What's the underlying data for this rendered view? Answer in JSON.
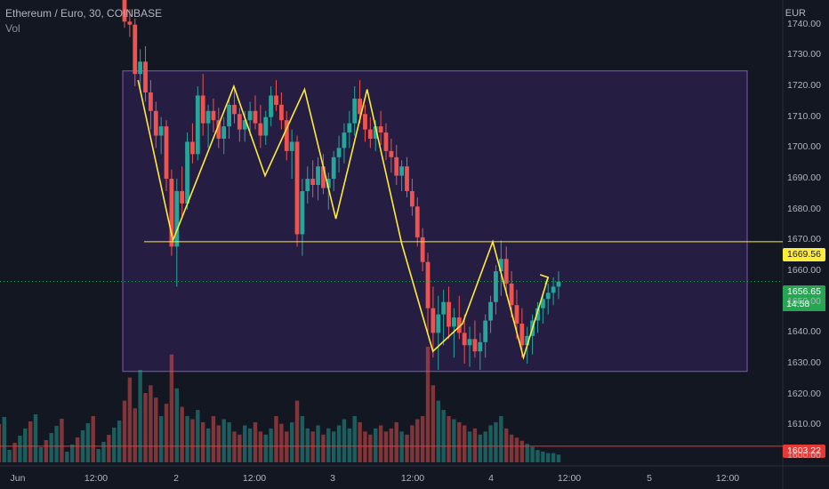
{
  "header": {
    "symbol_line": "Ethereum / Euro, 30, COINBASE",
    "indicator": "Vol",
    "currency": "EUR"
  },
  "price_axis": {
    "ticks": [
      "1740.00",
      "1730.00",
      "1720.00",
      "1710.00",
      "1700.00",
      "1690.00",
      "1680.00",
      "1670.00",
      "1660.00",
      "1650.00",
      "1640.00",
      "1630.00",
      "1620.00",
      "1610.00",
      "1600.00"
    ],
    "tick_values": [
      1740,
      1730,
      1720,
      1710,
      1700,
      1690,
      1680,
      1670,
      1660,
      1650,
      1640,
      1630,
      1620,
      1610,
      1600
    ]
  },
  "time_axis": {
    "labels": [
      "Jun",
      "12:00",
      "2",
      "12:00",
      "3",
      "12:00",
      "4",
      "12:00",
      "5",
      "12:00"
    ]
  },
  "labels": {
    "horizontal_line_price": "1669.56",
    "last_price": "1656.65",
    "countdown": "14:58",
    "low_line_price": "1603.22"
  },
  "colors": {
    "background": "#131722",
    "up": "#26a69a",
    "down": "#ef5350",
    "range_box": "#673ab7",
    "zigzag": "#ffeb3b",
    "hline": "#ffeb3b",
    "low_line": "#e53935"
  },
  "chart_data": {
    "type": "candlestick",
    "ylim": [
      1598,
      1748
    ],
    "range_box": {
      "top": 1725,
      "bottom": 1627.5
    },
    "horizontal_line": 1669.56,
    "last_price": 1656.65,
    "low_line": 1603.22,
    "candles": [
      [
        1752,
        1755,
        1739,
        1741
      ],
      [
        1741,
        1745,
        1736,
        1740
      ],
      [
        1740,
        1742,
        1720,
        1724
      ],
      [
        1724,
        1732,
        1718,
        1728
      ],
      [
        1728,
        1733,
        1715,
        1718
      ],
      [
        1718,
        1722,
        1706,
        1712
      ],
      [
        1712,
        1715,
        1700,
        1704
      ],
      [
        1704,
        1710,
        1698,
        1707
      ],
      [
        1707,
        1709,
        1686,
        1690
      ],
      [
        1690,
        1693,
        1665,
        1668
      ],
      [
        1668,
        1690,
        1655,
        1686
      ],
      [
        1686,
        1694,
        1678,
        1682
      ],
      [
        1682,
        1705,
        1680,
        1702
      ],
      [
        1702,
        1708,
        1695,
        1698
      ],
      [
        1698,
        1720,
        1696,
        1717
      ],
      [
        1717,
        1724,
        1704,
        1708
      ],
      [
        1708,
        1714,
        1700,
        1712
      ],
      [
        1712,
        1716,
        1705,
        1709
      ],
      [
        1709,
        1713,
        1700,
        1703
      ],
      [
        1703,
        1710,
        1698,
        1707
      ],
      [
        1707,
        1716,
        1703,
        1714
      ],
      [
        1714,
        1719,
        1708,
        1711
      ],
      [
        1711,
        1713,
        1702,
        1706
      ],
      [
        1706,
        1712,
        1702,
        1709
      ],
      [
        1709,
        1715,
        1704,
        1712
      ],
      [
        1712,
        1717,
        1706,
        1708
      ],
      [
        1708,
        1714,
        1700,
        1704
      ],
      [
        1704,
        1712,
        1701,
        1710
      ],
      [
        1710,
        1720,
        1707,
        1717
      ],
      [
        1717,
        1722,
        1712,
        1714
      ],
      [
        1714,
        1718,
        1706,
        1709
      ],
      [
        1709,
        1712,
        1696,
        1699
      ],
      [
        1699,
        1706,
        1690,
        1702
      ],
      [
        1702,
        1704,
        1668,
        1672
      ],
      [
        1672,
        1690,
        1665,
        1686
      ],
      [
        1686,
        1694,
        1682,
        1690
      ],
      [
        1690,
        1696,
        1684,
        1688
      ],
      [
        1688,
        1697,
        1683,
        1694
      ],
      [
        1694,
        1698,
        1685,
        1687
      ],
      [
        1687,
        1692,
        1680,
        1690
      ],
      [
        1690,
        1699,
        1686,
        1697
      ],
      [
        1697,
        1704,
        1692,
        1700
      ],
      [
        1700,
        1708,
        1695,
        1705
      ],
      [
        1705,
        1712,
        1700,
        1708
      ],
      [
        1708,
        1720,
        1704,
        1716
      ],
      [
        1716,
        1722,
        1708,
        1711
      ],
      [
        1711,
        1714,
        1702,
        1706
      ],
      [
        1706,
        1710,
        1700,
        1703
      ],
      [
        1703,
        1709,
        1699,
        1707
      ],
      [
        1707,
        1712,
        1701,
        1705
      ],
      [
        1705,
        1708,
        1696,
        1699
      ],
      [
        1699,
        1703,
        1692,
        1697
      ],
      [
        1697,
        1701,
        1688,
        1691
      ],
      [
        1691,
        1696,
        1686,
        1694
      ],
      [
        1694,
        1697,
        1684,
        1686
      ],
      [
        1686,
        1690,
        1678,
        1681
      ],
      [
        1681,
        1684,
        1668,
        1671
      ],
      [
        1671,
        1674,
        1660,
        1663
      ],
      [
        1663,
        1666,
        1640,
        1648
      ],
      [
        1648,
        1655,
        1632,
        1640
      ],
      [
        1640,
        1652,
        1628,
        1646
      ],
      [
        1646,
        1654,
        1636,
        1650
      ],
      [
        1650,
        1655,
        1638,
        1642
      ],
      [
        1642,
        1648,
        1632,
        1645
      ],
      [
        1645,
        1652,
        1638,
        1640
      ],
      [
        1640,
        1646,
        1630,
        1636
      ],
      [
        1636,
        1642,
        1629,
        1638
      ],
      [
        1638,
        1644,
        1632,
        1634
      ],
      [
        1634,
        1640,
        1628,
        1637
      ],
      [
        1637,
        1646,
        1632,
        1644
      ],
      [
        1644,
        1652,
        1640,
        1650
      ],
      [
        1650,
        1662,
        1646,
        1660
      ],
      [
        1660,
        1670,
        1652,
        1664
      ],
      [
        1664,
        1668,
        1652,
        1656
      ],
      [
        1656,
        1660,
        1645,
        1649
      ],
      [
        1649,
        1654,
        1638,
        1643
      ],
      [
        1643,
        1648,
        1632,
        1636
      ],
      [
        1636,
        1642,
        1630,
        1639
      ],
      [
        1639,
        1646,
        1633,
        1644
      ],
      [
        1644,
        1650,
        1640,
        1648
      ],
      [
        1648,
        1653,
        1643,
        1651
      ],
      [
        1651,
        1656,
        1646,
        1653
      ],
      [
        1653,
        1658,
        1649,
        1655
      ],
      [
        1655,
        1660,
        1651,
        1656.65
      ]
    ],
    "volumes": [
      40,
      55,
      35,
      60,
      45,
      50,
      42,
      30,
      38,
      70,
      48,
      36,
      30,
      28,
      34,
      26,
      22,
      30,
      24,
      28,
      26,
      20,
      18,
      24,
      22,
      26,
      20,
      18,
      22,
      30,
      25,
      20,
      26,
      40,
      30,
      22,
      20,
      24,
      18,
      22,
      20,
      24,
      28,
      22,
      30,
      26,
      20,
      18,
      22,
      24,
      20,
      22,
      26,
      20,
      18,
      24,
      28,
      30,
      75,
      50,
      40,
      34,
      30,
      28,
      26,
      24,
      20,
      22,
      18,
      20,
      24,
      26,
      30,
      22,
      18,
      16,
      14,
      12,
      10,
      8,
      7,
      6,
      6,
      5
    ],
    "zigzag": [
      [
        0.14,
        1722
      ],
      [
        1.2,
        1670
      ],
      [
        3.05,
        1720
      ],
      [
        4.0,
        1691
      ],
      [
        5.2,
        1719
      ],
      [
        6.15,
        1677
      ],
      [
        7.1,
        1719
      ],
      [
        8.15,
        1669
      ],
      [
        9.1,
        1634
      ],
      [
        10.0,
        1643
      ],
      [
        10.92,
        1669.56
      ],
      [
        11.85,
        1632
      ],
      [
        12.6,
        1658
      ]
    ]
  }
}
